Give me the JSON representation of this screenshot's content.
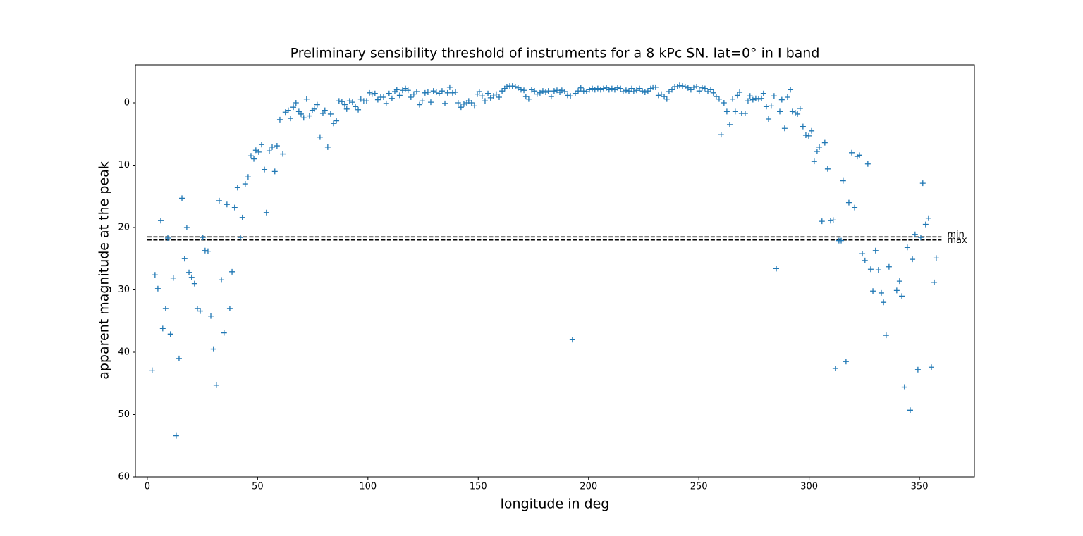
{
  "chart_data": {
    "type": "scatter",
    "title": "Preliminary sensibility threshold of instruments for a 8 kPc SN. lat=0° in I band",
    "x_label": "longitude in deg",
    "y_label": "apparent magnitude at the peak",
    "marker": "+",
    "color": "#1f77b4",
    "invert_y": true,
    "xlim": [
      -5.4,
      374.9
    ],
    "ylim": [
      -6.1,
      60
    ],
    "xticks": [
      0,
      50,
      100,
      150,
      200,
      250,
      300,
      350
    ],
    "yticks": [
      0,
      10,
      20,
      30,
      40,
      50,
      60
    ],
    "hlines": [
      {
        "label": "min",
        "value": 21.5,
        "x": [
          0,
          360
        ],
        "color": "#000000"
      },
      {
        "label": "max",
        "value": 22,
        "x": [
          0,
          360
        ],
        "color": "#000000"
      }
    ],
    "x": [
      2.2,
      3.5,
      4.8,
      6.1,
      7.0,
      8.3,
      9.3,
      10.5,
      11.8,
      13.1,
      14.4,
      15.7,
      16.9,
      17.9,
      18.9,
      20.1,
      21.4,
      22.7,
      24.0,
      25.2,
      26.2,
      27.5,
      28.8,
      30.0,
      31.3,
      32.6,
      33.6,
      34.8,
      36.1,
      37.4,
      38.4,
      39.6,
      40.9,
      42.2,
      43.1,
      44.4,
      45.7,
      47.0,
      48.3,
      49.2,
      50.5,
      51.8,
      53.1,
      54.0,
      55.3,
      56.6,
      57.8,
      58.8,
      60.1,
      61.4,
      62.6,
      63.9,
      64.9,
      66.2,
      67.4,
      68.7,
      69.7,
      70.9,
      72.2,
      73.5,
      74.8,
      75.7,
      77.0,
      78.3,
      79.6,
      80.5,
      81.8,
      83.1,
      84.4,
      85.7,
      86.9,
      88.2,
      89.5,
      90.4,
      91.7,
      93.0,
      94.3,
      95.6,
      96.8,
      98.1,
      99.4,
      100.7,
      101.9,
      103.2,
      104.5,
      105.8,
      107.1,
      108.3,
      109.6,
      110.9,
      112.2,
      113.1,
      114.4,
      115.7,
      117.0,
      118.2,
      119.5,
      120.8,
      122.1,
      123.4,
      124.6,
      125.9,
      127.2,
      128.5,
      129.7,
      131.0,
      132.3,
      133.6,
      134.9,
      136.1,
      137.1,
      138.4,
      139.7,
      140.9,
      142.2,
      143.5,
      144.8,
      145.7,
      147.0,
      148.3,
      149.6,
      150.5,
      151.8,
      153.1,
      154.4,
      155.6,
      156.9,
      158.2,
      159.5,
      160.8,
      162.0,
      163.0,
      164.3,
      165.5,
      166.8,
      168.1,
      169.4,
      170.7,
      171.6,
      172.9,
      174.2,
      175.5,
      176.7,
      178.0,
      179.3,
      180.6,
      181.8,
      183.1,
      184.4,
      185.7,
      187.0,
      187.9,
      189.2,
      190.5,
      191.8,
      192.7,
      194.0,
      195.3,
      196.5,
      197.8,
      199.1,
      200.4,
      201.7,
      202.9,
      204.2,
      205.5,
      206.8,
      208.1,
      209.3,
      210.6,
      211.9,
      213.2,
      214.5,
      215.7,
      217.0,
      218.3,
      219.6,
      220.5,
      221.8,
      223.1,
      224.4,
      225.6,
      226.9,
      228.2,
      229.2,
      230.4,
      231.7,
      233.0,
      234.3,
      235.5,
      236.5,
      237.8,
      239.1,
      240.3,
      241.3,
      242.6,
      243.8,
      245.1,
      246.4,
      247.7,
      249.0,
      250.2,
      251.5,
      252.8,
      254.1,
      255.4,
      256.6,
      257.9,
      259.2,
      260.1,
      261.4,
      262.7,
      264.0,
      265.3,
      266.5,
      267.5,
      268.5,
      269.4,
      271.0,
      272.3,
      273.2,
      274.5,
      275.8,
      277.1,
      278.4,
      279.3,
      280.6,
      281.6,
      282.8,
      284.1,
      285.1,
      286.7,
      287.6,
      288.9,
      290.2,
      291.5,
      292.4,
      293.7,
      294.7,
      295.9,
      297.2,
      298.5,
      299.8,
      301.1,
      302.3,
      303.6,
      304.6,
      305.8,
      307.1,
      308.4,
      309.7,
      310.9,
      311.9,
      313.5,
      314.5,
      315.4,
      316.7,
      318.0,
      319.3,
      320.6,
      321.8,
      322.8,
      324.1,
      325.3,
      326.6,
      327.9,
      328.9,
      330.1,
      331.4,
      332.7,
      333.7,
      334.9,
      336.2,
      339.7,
      341.0,
      342.0,
      343.2,
      344.5,
      345.8,
      346.8,
      348.0,
      349.3,
      350.6,
      351.5,
      352.8,
      354.1,
      355.4,
      356.7,
      357.6
    ],
    "values": [
      42.9,
      27.6,
      29.8,
      18.9,
      36.2,
      33.0,
      21.7,
      37.1,
      28.1,
      53.4,
      41.0,
      15.3,
      25.0,
      20.0,
      27.2,
      28.0,
      29.0,
      33.0,
      33.4,
      21.6,
      23.7,
      23.8,
      34.2,
      39.5,
      45.3,
      15.7,
      28.4,
      36.9,
      16.3,
      33.0,
      27.1,
      16.8,
      13.6,
      21.6,
      18.4,
      13.0,
      11.9,
      8.5,
      9.0,
      7.6,
      7.9,
      6.7,
      10.7,
      17.6,
      7.7,
      7.1,
      11.0,
      6.9,
      2.7,
      8.2,
      1.5,
      1.2,
      2.5,
      0.7,
      0.0,
      1.4,
      1.8,
      2.4,
      -0.6,
      2.1,
      1.2,
      1.0,
      0.3,
      5.5,
      1.7,
      1.2,
      7.1,
      1.8,
      3.3,
      2.9,
      -0.3,
      -0.2,
      0.3,
      1.0,
      -0.3,
      -0.1,
      0.6,
      1.1,
      -0.6,
      -0.3,
      -0.3,
      -1.6,
      -1.4,
      -1.5,
      -0.5,
      -0.9,
      -0.9,
      0.1,
      -1.5,
      -0.7,
      -1.8,
      -2.1,
      -1.2,
      -2.0,
      -2.3,
      -2.0,
      -0.9,
      -1.4,
      -1.8,
      0.3,
      -0.3,
      -1.6,
      -1.7,
      -0.1,
      -1.9,
      -1.7,
      -1.5,
      -1.9,
      0.1,
      -1.6,
      -2.5,
      -1.6,
      -1.7,
      0.0,
      0.7,
      0.2,
      0.0,
      -0.3,
      0.0,
      0.5,
      -1.4,
      -1.8,
      -1.1,
      -0.3,
      -1.5,
      -0.8,
      -1.1,
      -1.4,
      -0.9,
      -1.9,
      -2.3,
      -2.6,
      -2.7,
      -2.7,
      -2.6,
      -2.4,
      -2.1,
      -2.0,
      -1.0,
      -0.6,
      -2.1,
      -1.9,
      -1.4,
      -1.6,
      -1.9,
      -1.7,
      -1.9,
      -1.0,
      -1.9,
      -2.0,
      -1.7,
      -2.0,
      -1.8,
      -1.2,
      -1.1,
      38.0,
      -1.5,
      -1.9,
      -2.4,
      -1.9,
      -1.8,
      -2.1,
      -2.3,
      -2.1,
      -2.3,
      -2.1,
      -2.3,
      -2.4,
      -2.1,
      -2.3,
      -2.1,
      -2.4,
      -2.3,
      -1.8,
      -2.0,
      -1.9,
      -2.3,
      -1.8,
      -2.0,
      -2.3,
      -1.9,
      -1.7,
      -1.9,
      -2.3,
      -2.5,
      -2.5,
      -1.2,
      -1.4,
      -1.0,
      -0.6,
      -1.8,
      -2.1,
      -2.6,
      -2.6,
      -2.8,
      -2.7,
      -2.6,
      -2.4,
      -2.1,
      -2.5,
      -2.6,
      -1.9,
      -2.4,
      -2.3,
      -1.8,
      -2.1,
      -1.6,
      -1.0,
      -0.6,
      5.1,
      0.0,
      1.4,
      3.5,
      -0.6,
      1.4,
      -1.2,
      -1.7,
      1.7,
      1.7,
      -0.3,
      -1.1,
      -0.5,
      -0.7,
      -0.6,
      -0.7,
      -1.5,
      0.6,
      2.6,
      0.5,
      -1.1,
      26.6,
      1.4,
      -0.5,
      4.1,
      -0.9,
      -2.1,
      1.4,
      1.6,
      1.8,
      0.9,
      3.8,
      5.2,
      5.3,
      4.5,
      9.4,
      7.8,
      7.1,
      19.0,
      6.4,
      10.6,
      18.9,
      18.8,
      42.6,
      22.1,
      22.1,
      12.5,
      41.5,
      16.0,
      8.0,
      16.8,
      8.6,
      8.4,
      24.2,
      25.3,
      9.8,
      26.7,
      30.2,
      23.7,
      26.8,
      30.5,
      32.0,
      37.3,
      26.3,
      30.1,
      28.6,
      31.0,
      45.6,
      23.2,
      49.3,
      25.1,
      21.1,
      42.8,
      21.6,
      12.9,
      19.5,
      18.5,
      42.4,
      28.8,
      24.9
    ]
  }
}
